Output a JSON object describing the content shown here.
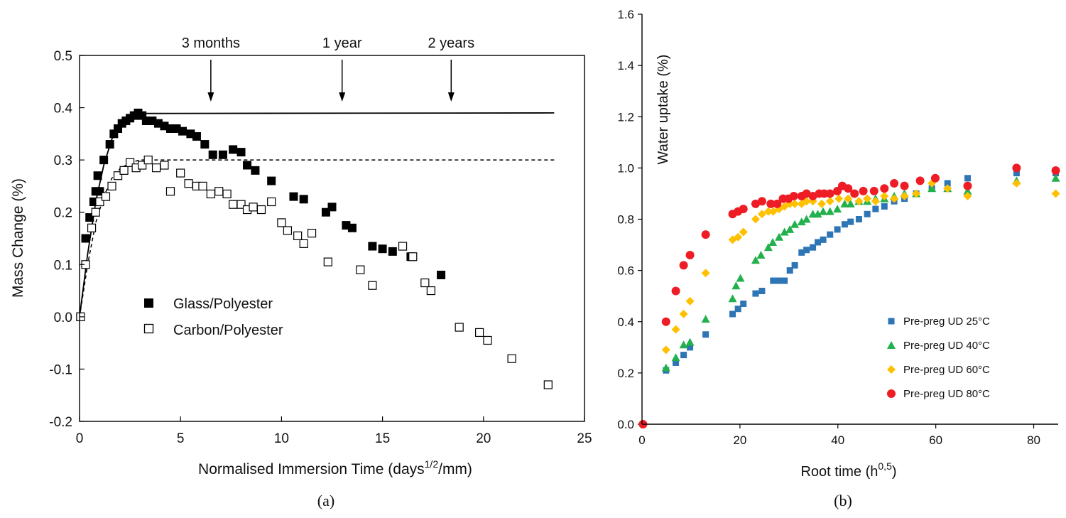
{
  "colors": {
    "pre25": "#2e75b6",
    "pre40": "#22b14c",
    "pre60": "#ffc000",
    "pre80": "#ee1c24"
  },
  "chart_data": [
    {
      "type": "scatter",
      "panel_label": "(a)",
      "title": "",
      "xlabel": "Normalised Immersion Time (days",
      "xlabel_sup": "1/2",
      "xlabel_end": "/mm)",
      "ylabel": "Mass Change (%)",
      "xlim": [
        0,
        25
      ],
      "ylim": [
        -0.2,
        0.5
      ],
      "x_ticks": [
        0,
        5,
        10,
        15,
        20,
        25
      ],
      "y_ticks": [
        "-0.2",
        "-0.1",
        "0.0",
        "0.1",
        "0.2",
        "0.3",
        "0.4",
        "0.5"
      ],
      "legend_position": "center-left",
      "annotations": [
        {
          "label": "3 months",
          "x": 6.5
        },
        {
          "label": "1 year",
          "x": 13.0
        },
        {
          "label": "2 years",
          "x": 18.4
        }
      ],
      "fit_lines": [
        {
          "name": "glass-fit",
          "style": "solid",
          "plateau": 0.39,
          "x": [
            0,
            0.4,
            0.8,
            1.2,
            1.6,
            2.0,
            2.5,
            3.0,
            23.5
          ],
          "y": [
            0,
            0.12,
            0.22,
            0.29,
            0.34,
            0.365,
            0.38,
            0.389,
            0.39
          ]
        },
        {
          "name": "carbon-fit",
          "style": "dashed",
          "plateau": 0.3,
          "x": [
            0,
            0.4,
            0.8,
            1.2,
            1.6,
            2.0,
            2.5,
            3.0,
            23.5
          ],
          "y": [
            0,
            0.1,
            0.18,
            0.23,
            0.265,
            0.283,
            0.295,
            0.3,
            0.3
          ]
        }
      ],
      "series": [
        {
          "name": "Glass/Polyester",
          "marker": "filled-square",
          "x": [
            0.05,
            0.3,
            0.5,
            0.7,
            0.8,
            0.9,
            1.0,
            1.2,
            1.5,
            1.7,
            1.9,
            2.1,
            2.3,
            2.5,
            2.7,
            2.9,
            3.1,
            3.3,
            3.6,
            3.9,
            4.2,
            4.5,
            4.8,
            5.1,
            5.5,
            5.8,
            6.2,
            6.6,
            7.1,
            7.6,
            8.0,
            8.3,
            8.7,
            9.5,
            10.6,
            11.1,
            12.2,
            12.5,
            13.2,
            13.5,
            14.5,
            15.0,
            15.5,
            16.4,
            17.9
          ],
          "y": [
            0.0,
            0.15,
            0.19,
            0.22,
            0.24,
            0.27,
            0.24,
            0.3,
            0.33,
            0.35,
            0.36,
            0.37,
            0.375,
            0.38,
            0.385,
            0.39,
            0.385,
            0.375,
            0.375,
            0.37,
            0.365,
            0.36,
            0.36,
            0.355,
            0.35,
            0.345,
            0.33,
            0.31,
            0.31,
            0.32,
            0.315,
            0.29,
            0.28,
            0.26,
            0.23,
            0.225,
            0.2,
            0.21,
            0.175,
            0.17,
            0.135,
            0.13,
            0.125,
            0.115,
            0.08
          ]
        },
        {
          "name": "Carbon/Polyester",
          "marker": "open-square",
          "x": [
            0.05,
            0.3,
            0.6,
            0.8,
            1.0,
            1.3,
            1.6,
            1.9,
            2.2,
            2.5,
            2.8,
            3.1,
            3.4,
            3.8,
            4.2,
            4.5,
            5.0,
            5.4,
            5.8,
            6.1,
            6.5,
            6.9,
            7.3,
            7.6,
            8.0,
            8.3,
            8.6,
            9.0,
            9.5,
            10.0,
            10.3,
            10.8,
            11.1,
            11.5,
            12.3,
            13.9,
            14.5,
            16.0,
            16.5,
            17.1,
            17.4,
            18.8,
            19.8,
            20.2,
            21.4,
            23.2
          ],
          "y": [
            0.0,
            0.1,
            0.17,
            0.2,
            0.22,
            0.23,
            0.25,
            0.27,
            0.28,
            0.295,
            0.285,
            0.29,
            0.3,
            0.285,
            0.29,
            0.24,
            0.275,
            0.255,
            0.25,
            0.25,
            0.235,
            0.24,
            0.235,
            0.215,
            0.215,
            0.205,
            0.21,
            0.205,
            0.22,
            0.18,
            0.165,
            0.155,
            0.14,
            0.16,
            0.105,
            0.09,
            0.06,
            0.135,
            0.115,
            0.065,
            0.05,
            -0.02,
            -0.03,
            -0.045,
            -0.08,
            -0.13
          ]
        }
      ]
    },
    {
      "type": "scatter",
      "panel_label": "(b)",
      "title": "",
      "xlabel": "Root time (h",
      "xlabel_sup": "0,5",
      "xlabel_end": ")",
      "ylabel": "Water uptake (%)",
      "xlim": [
        0,
        85
      ],
      "ylim": [
        0,
        1.6
      ],
      "x_ticks": [
        0,
        20,
        40,
        60,
        80
      ],
      "y_ticks": [
        "0.0",
        "0.2",
        "0.4",
        "0.6",
        "0.8",
        "1.0",
        "1.2",
        "1.4",
        "1.6"
      ],
      "legend_position": "bottom-right",
      "series": [
        {
          "name": "Pre-preg UD 25°C",
          "marker": "square",
          "color_key": "pre25",
          "x": [
            4.9,
            6.9,
            8.5,
            9.8,
            13.0,
            18.5,
            19.6,
            20.7,
            23.2,
            24.5,
            26.8,
            28.0,
            29.1,
            30.2,
            31.2,
            32.6,
            33.6,
            34.9,
            35.9,
            37.0,
            38.4,
            39.9,
            41.4,
            42.6,
            44.3,
            46.0,
            47.7,
            49.5,
            51.5,
            53.6,
            56.0,
            59.2,
            62.4,
            66.5,
            76.5,
            84.5
          ],
          "y": [
            0.21,
            0.24,
            0.27,
            0.3,
            0.35,
            0.43,
            0.45,
            0.47,
            0.51,
            0.52,
            0.56,
            0.56,
            0.56,
            0.6,
            0.62,
            0.67,
            0.68,
            0.69,
            0.71,
            0.72,
            0.74,
            0.76,
            0.78,
            0.79,
            0.8,
            0.82,
            0.84,
            0.85,
            0.87,
            0.88,
            0.9,
            0.92,
            0.94,
            0.96,
            0.98,
            0.98
          ]
        },
        {
          "name": "Pre-preg UD 40°C",
          "marker": "triangle",
          "color_key": "pre40",
          "x": [
            4.9,
            6.9,
            8.5,
            9.8,
            13.0,
            18.5,
            19.2,
            20.1,
            23.2,
            24.3,
            25.8,
            26.7,
            28.0,
            29.1,
            30.2,
            31.2,
            32.6,
            33.6,
            34.9,
            35.9,
            37.0,
            38.4,
            39.9,
            41.4,
            42.6,
            44.3,
            46.0,
            47.7,
            49.5,
            51.5,
            53.6,
            56.0,
            59.2,
            62.4,
            66.5,
            76.5,
            84.5
          ],
          "y": [
            0.22,
            0.26,
            0.31,
            0.32,
            0.41,
            0.49,
            0.54,
            0.57,
            0.64,
            0.66,
            0.69,
            0.71,
            0.73,
            0.75,
            0.76,
            0.78,
            0.79,
            0.8,
            0.82,
            0.82,
            0.83,
            0.83,
            0.84,
            0.86,
            0.86,
            0.87,
            0.87,
            0.88,
            0.88,
            0.89,
            0.9,
            0.9,
            0.92,
            0.92,
            0.91,
            0.95,
            0.96
          ]
        },
        {
          "name": "Pre-preg UD 60°C",
          "marker": "diamond",
          "color_key": "pre60",
          "x": [
            4.9,
            6.9,
            8.5,
            9.8,
            13.0,
            18.5,
            19.6,
            20.7,
            23.2,
            24.5,
            25.8,
            26.8,
            28.0,
            29.1,
            30.2,
            31.2,
            32.6,
            33.6,
            34.9,
            36.7,
            38.4,
            40.2,
            42.1,
            44.3,
            46.0,
            47.7,
            49.5,
            51.5,
            53.6,
            56.0,
            59.2,
            62.4,
            66.5,
            76.5,
            84.5
          ],
          "y": [
            0.29,
            0.37,
            0.43,
            0.48,
            0.59,
            0.72,
            0.73,
            0.75,
            0.8,
            0.82,
            0.83,
            0.83,
            0.84,
            0.85,
            0.86,
            0.86,
            0.86,
            0.87,
            0.87,
            0.86,
            0.87,
            0.88,
            0.88,
            0.87,
            0.88,
            0.87,
            0.89,
            0.88,
            0.89,
            0.9,
            0.94,
            0.92,
            0.89,
            0.94,
            0.9
          ]
        },
        {
          "name": "Pre-preg UD 80°C",
          "marker": "circle",
          "color_key": "pre80",
          "x": [
            0.2,
            4.9,
            6.9,
            8.5,
            9.8,
            13.0,
            18.5,
            19.6,
            20.7,
            23.2,
            24.5,
            26.3,
            27.6,
            28.8,
            29.9,
            31.0,
            32.6,
            33.6,
            34.9,
            36.2,
            37.2,
            38.4,
            39.9,
            40.9,
            42.1,
            43.4,
            45.2,
            47.4,
            49.5,
            51.5,
            53.6,
            56.8,
            59.9,
            66.5,
            76.5,
            84.5
          ],
          "y": [
            0.0,
            0.4,
            0.52,
            0.62,
            0.66,
            0.74,
            0.82,
            0.83,
            0.84,
            0.86,
            0.87,
            0.86,
            0.86,
            0.88,
            0.88,
            0.89,
            0.89,
            0.9,
            0.89,
            0.9,
            0.9,
            0.9,
            0.91,
            0.93,
            0.92,
            0.9,
            0.91,
            0.91,
            0.92,
            0.94,
            0.93,
            0.95,
            0.96,
            0.93,
            1.0,
            0.99
          ]
        }
      ]
    }
  ]
}
